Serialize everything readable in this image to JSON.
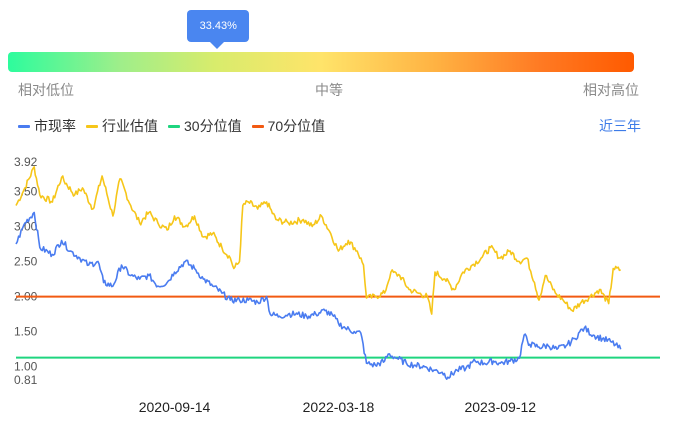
{
  "gauge": {
    "percentile_text": "33.43%",
    "percentile_value": 33.43,
    "low_label": "相对低位",
    "mid_label": "中等",
    "high_label": "相对高位"
  },
  "legend": [
    {
      "key": "pe",
      "label": "市现率",
      "color": "#4a7cf0"
    },
    {
      "key": "industry",
      "label": "行业估值",
      "color": "#f6c619"
    },
    {
      "key": "p30",
      "label": "30分位值",
      "color": "#1fd57f"
    },
    {
      "key": "p70",
      "label": "70分位值",
      "color": "#f25a12"
    }
  ],
  "period_label": "近三年",
  "chart_data": {
    "type": "line",
    "ylim": [
      0.81,
      3.92
    ],
    "y_ticks": [
      "3.92",
      "3.50",
      "3.00",
      "2.50",
      "2.00",
      "1.50",
      "1.00",
      "0.81"
    ],
    "x_range": [
      "2019-04-01",
      "2025-03-01"
    ],
    "x_ticks": [
      "2020-09-14",
      "2022-03-18",
      "2023-09-12"
    ],
    "reference_lines": [
      {
        "key": "p30",
        "value": 1.13
      },
      {
        "key": "p70",
        "value": 2.0
      }
    ],
    "series": [
      {
        "key": "industry",
        "points": [
          [
            "2019-04-01",
            3.3
          ],
          [
            "2019-05-01",
            3.55
          ],
          [
            "2019-06-01",
            3.85
          ],
          [
            "2019-06-20",
            3.45
          ],
          [
            "2019-08-01",
            3.35
          ],
          [
            "2019-09-01",
            3.7
          ],
          [
            "2019-10-15",
            3.45
          ],
          [
            "2019-11-10",
            3.55
          ],
          [
            "2019-12-15",
            3.25
          ],
          [
            "2020-01-15",
            3.72
          ],
          [
            "2020-02-20",
            3.15
          ],
          [
            "2020-03-15",
            3.68
          ],
          [
            "2020-04-20",
            3.3
          ],
          [
            "2020-05-20",
            3.05
          ],
          [
            "2020-06-20",
            3.2
          ],
          [
            "2020-07-20",
            3.05
          ],
          [
            "2020-08-20",
            2.95
          ],
          [
            "2020-09-14",
            3.15
          ],
          [
            "2020-10-20",
            3.0
          ],
          [
            "2020-11-20",
            3.15
          ],
          [
            "2020-12-20",
            2.85
          ],
          [
            "2021-01-20",
            2.9
          ],
          [
            "2021-02-20",
            2.7
          ],
          [
            "2021-03-20",
            2.55
          ],
          [
            "2021-04-01",
            2.4
          ],
          [
            "2021-04-20",
            2.5
          ],
          [
            "2021-05-01",
            3.3
          ],
          [
            "2021-05-20",
            3.35
          ],
          [
            "2021-06-20",
            3.25
          ],
          [
            "2021-07-20",
            3.35
          ],
          [
            "2021-08-20",
            3.1
          ],
          [
            "2021-10-01",
            3.05
          ],
          [
            "2021-11-20",
            3.1
          ],
          [
            "2021-12-20",
            3.0
          ],
          [
            "2022-01-20",
            3.15
          ],
          [
            "2022-02-20",
            2.9
          ],
          [
            "2022-03-18",
            2.65
          ],
          [
            "2022-04-20",
            2.8
          ],
          [
            "2022-05-20",
            2.65
          ],
          [
            "2022-06-10",
            2.45
          ],
          [
            "2022-06-20",
            1.98
          ],
          [
            "2022-07-20",
            2.0
          ],
          [
            "2022-08-20",
            2.05
          ],
          [
            "2022-09-10",
            2.35
          ],
          [
            "2022-10-10",
            2.3
          ],
          [
            "2022-11-10",
            2.1
          ],
          [
            "2022-12-10",
            2.05
          ],
          [
            "2023-01-10",
            2.0
          ],
          [
            "2023-01-25",
            1.75
          ],
          [
            "2023-02-05",
            2.35
          ],
          [
            "2023-03-10",
            2.25
          ],
          [
            "2023-04-10",
            2.1
          ],
          [
            "2023-05-10",
            2.35
          ],
          [
            "2023-06-10",
            2.45
          ],
          [
            "2023-07-10",
            2.55
          ],
          [
            "2023-08-10",
            2.7
          ],
          [
            "2023-09-12",
            2.55
          ],
          [
            "2023-10-15",
            2.65
          ],
          [
            "2023-11-15",
            2.5
          ],
          [
            "2023-12-10",
            2.55
          ],
          [
            "2024-01-05",
            2.2
          ],
          [
            "2024-01-20",
            1.95
          ],
          [
            "2024-02-10",
            2.3
          ],
          [
            "2024-03-15",
            2.05
          ],
          [
            "2024-04-10",
            1.95
          ],
          [
            "2024-05-10",
            1.8
          ],
          [
            "2024-06-10",
            1.92
          ],
          [
            "2024-07-10",
            2.0
          ],
          [
            "2024-08-10",
            2.1
          ],
          [
            "2024-09-10",
            1.9
          ],
          [
            "2024-09-25",
            2.4
          ],
          [
            "2024-10-20",
            2.38
          ]
        ]
      },
      {
        "key": "pe",
        "points": [
          [
            "2019-04-01",
            2.75
          ],
          [
            "2019-05-01",
            3.05
          ],
          [
            "2019-06-01",
            3.2
          ],
          [
            "2019-06-20",
            2.7
          ],
          [
            "2019-08-01",
            2.6
          ],
          [
            "2019-09-01",
            2.8
          ],
          [
            "2019-10-01",
            2.65
          ],
          [
            "2019-11-01",
            2.55
          ],
          [
            "2019-12-01",
            2.45
          ],
          [
            "2020-01-01",
            2.5
          ],
          [
            "2020-01-20",
            2.2
          ],
          [
            "2020-02-20",
            2.15
          ],
          [
            "2020-03-20",
            2.45
          ],
          [
            "2020-04-20",
            2.3
          ],
          [
            "2020-05-20",
            2.25
          ],
          [
            "2020-06-20",
            2.3
          ],
          [
            "2020-07-20",
            2.15
          ],
          [
            "2020-08-20",
            2.2
          ],
          [
            "2020-09-14",
            2.35
          ],
          [
            "2020-10-20",
            2.5
          ],
          [
            "2020-11-20",
            2.4
          ],
          [
            "2020-12-20",
            2.25
          ],
          [
            "2021-01-20",
            2.15
          ],
          [
            "2021-02-20",
            2.05
          ],
          [
            "2021-03-20",
            1.95
          ],
          [
            "2021-04-20",
            1.95
          ],
          [
            "2021-05-20",
            1.95
          ],
          [
            "2021-06-20",
            1.92
          ],
          [
            "2021-07-20",
            2.0
          ],
          [
            "2021-08-01",
            1.75
          ],
          [
            "2021-09-01",
            1.72
          ],
          [
            "2021-10-01",
            1.75
          ],
          [
            "2021-11-01",
            1.75
          ],
          [
            "2021-12-01",
            1.72
          ],
          [
            "2022-01-01",
            1.75
          ],
          [
            "2022-02-01",
            1.8
          ],
          [
            "2022-03-01",
            1.72
          ],
          [
            "2022-03-18",
            1.62
          ],
          [
            "2022-04-10",
            1.55
          ],
          [
            "2022-05-10",
            1.5
          ],
          [
            "2022-06-01",
            1.48
          ],
          [
            "2022-06-20",
            1.05
          ],
          [
            "2022-07-20",
            1.02
          ],
          [
            "2022-08-20",
            1.08
          ],
          [
            "2022-09-01",
            1.18
          ],
          [
            "2022-10-01",
            1.12
          ],
          [
            "2022-11-01",
            1.05
          ],
          [
            "2022-12-01",
            1.02
          ],
          [
            "2023-01-01",
            1.0
          ],
          [
            "2023-02-01",
            0.95
          ],
          [
            "2023-03-01",
            0.92
          ],
          [
            "2023-03-20",
            0.85
          ],
          [
            "2023-04-20",
            0.95
          ],
          [
            "2023-05-20",
            0.98
          ],
          [
            "2023-06-20",
            1.08
          ],
          [
            "2023-07-20",
            1.05
          ],
          [
            "2023-08-20",
            1.08
          ],
          [
            "2023-09-12",
            1.05
          ],
          [
            "2023-10-15",
            1.08
          ],
          [
            "2023-11-15",
            1.12
          ],
          [
            "2023-12-01",
            1.45
          ],
          [
            "2023-12-20",
            1.32
          ],
          [
            "2024-01-20",
            1.28
          ],
          [
            "2024-02-20",
            1.3
          ],
          [
            "2024-03-20",
            1.25
          ],
          [
            "2024-04-20",
            1.3
          ],
          [
            "2024-05-20",
            1.4
          ],
          [
            "2024-06-01",
            1.48
          ],
          [
            "2024-06-20",
            1.55
          ],
          [
            "2024-07-20",
            1.45
          ],
          [
            "2024-08-20",
            1.4
          ],
          [
            "2024-09-20",
            1.35
          ],
          [
            "2024-10-20",
            1.25
          ]
        ]
      }
    ]
  }
}
